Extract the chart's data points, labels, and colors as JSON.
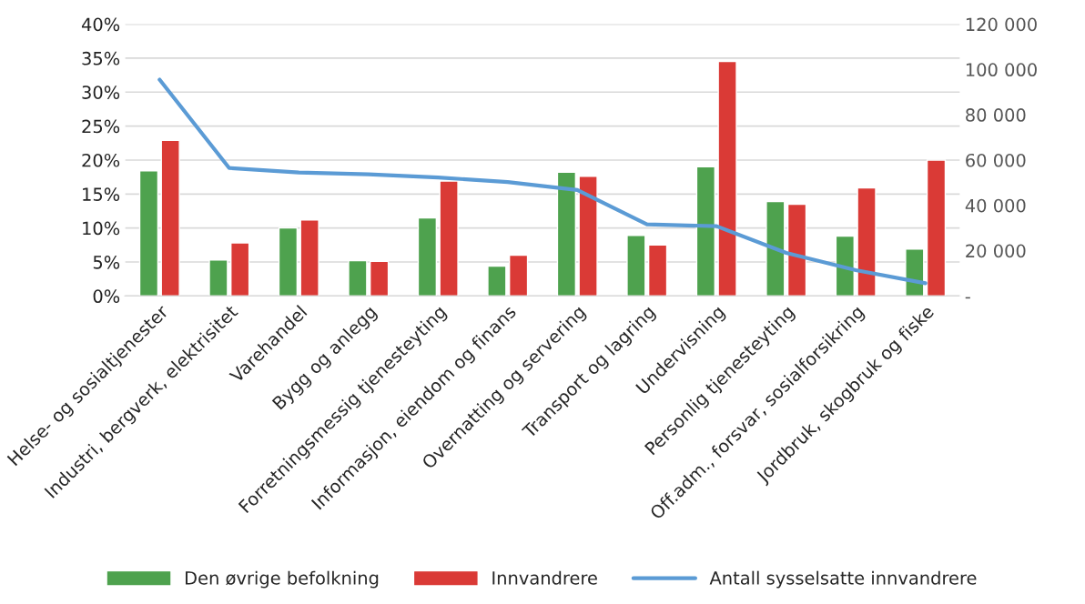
{
  "chart_data": {
    "type": "bar",
    "categories": [
      "Helse- og sosialtjenester",
      "Industri, bergverk, elektrisitet",
      "Varehandel",
      "Bygg og anlegg",
      "Forretningsmessig tjenesteyting",
      "Informasjon, eiendom og finans",
      "Overnatting og servering",
      "Transport og lagring",
      "Undervisning",
      "Personlig tjenesteyting",
      "Off.adm., forsvar, sosialforsikring",
      "Jordbruk, skogbruk og fiske"
    ],
    "series": [
      {
        "name": "Den øvrige befolkning",
        "color": "#4ea24e",
        "values": [
          18.4,
          5.3,
          10.0,
          5.2,
          11.5,
          4.4,
          18.2,
          8.9,
          19.0,
          13.9,
          8.8,
          6.9
        ]
      },
      {
        "name": "Innvandrere",
        "color": "#da3a36",
        "values": [
          22.9,
          7.8,
          11.2,
          5.1,
          16.9,
          6.0,
          17.6,
          7.5,
          34.5,
          13.5,
          15.9,
          20.0
        ]
      },
      {
        "name": "Antall sysselsatte innvandrere",
        "type": "line",
        "axis": "y2",
        "color": "#5b9bd5",
        "values": [
          95500,
          56500,
          54500,
          53700,
          52300,
          50300,
          46800,
          31600,
          30800,
          19000,
          11400,
          5600
        ]
      }
    ],
    "ylim": [
      0,
      40
    ],
    "yticks": [
      {
        "value": 0,
        "label": "0%"
      },
      {
        "value": 5,
        "label": "5%"
      },
      {
        "value": 10,
        "label": "10%"
      },
      {
        "value": 15,
        "label": "15%"
      },
      {
        "value": 20,
        "label": "20%"
      },
      {
        "value": 25,
        "label": "25%"
      },
      {
        "value": 30,
        "label": "30%"
      },
      {
        "value": 35,
        "label": "35%"
      },
      {
        "value": 40,
        "label": "40%"
      }
    ],
    "y2lim": [
      0,
      120000
    ],
    "y2ticks": [
      {
        "value": 0,
        "label": "-"
      },
      {
        "value": 20000,
        "label": "20 000"
      },
      {
        "value": 40000,
        "label": "40 000"
      },
      {
        "value": 60000,
        "label": "60 000"
      },
      {
        "value": 80000,
        "label": "80 000"
      },
      {
        "value": 100000,
        "label": "100 000"
      },
      {
        "value": 120000,
        "label": "120 000"
      }
    ],
    "grid": "y",
    "legend": "bottom"
  }
}
